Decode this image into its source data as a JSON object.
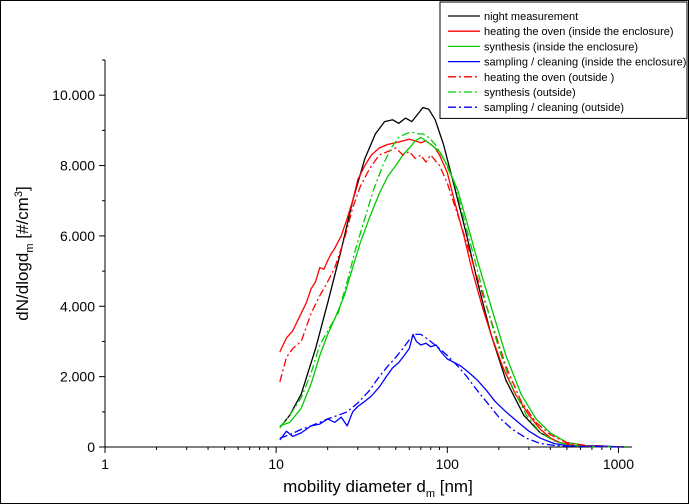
{
  "chart_data": {
    "type": "line",
    "xscale": "log",
    "xlim": [
      1,
      1200
    ],
    "ylim": [
      0,
      11000
    ],
    "grid": false,
    "legend_placement": "top-right",
    "xlabel": {
      "main": "mobility diameter d",
      "sub": "m",
      "unit": " [nm]"
    },
    "ylabel": {
      "main": "dN/dlogd",
      "sub": "m",
      "unit": "  [#/cm",
      "sup": "3",
      "close": "]"
    },
    "x_ticks": [
      {
        "value": 1,
        "label": "1"
      },
      {
        "value": 10,
        "label": "10"
      },
      {
        "value": 100,
        "label": "100"
      },
      {
        "value": 1000,
        "label": "1000"
      }
    ],
    "y_ticks": [
      {
        "value": 0,
        "label": "0"
      },
      {
        "value": 2000,
        "label": "2.000"
      },
      {
        "value": 4000,
        "label": "4.000"
      },
      {
        "value": 6000,
        "label": "6.000"
      },
      {
        "value": 8000,
        "label": "8.000"
      },
      {
        "value": 10000,
        "label": "10.000"
      }
    ],
    "series": [
      {
        "name": "night measurement",
        "color": "#000000",
        "dash": "solid",
        "x": [
          10.5,
          12,
          14,
          17,
          20,
          24,
          28,
          33,
          38,
          43,
          48,
          52,
          57,
          62,
          67,
          72,
          78,
          85,
          95,
          110,
          130,
          150,
          180,
          220,
          280,
          350,
          450,
          550,
          700,
          900,
          1100
        ],
        "y": [
          550,
          900,
          1500,
          2800,
          4100,
          5600,
          7000,
          8200,
          8900,
          9250,
          9300,
          9200,
          9350,
          9250,
          9450,
          9650,
          9600,
          9300,
          8600,
          7400,
          6000,
          4700,
          3200,
          1900,
          900,
          400,
          130,
          40,
          15,
          5,
          0
        ]
      },
      {
        "name": "heating the oven (inside the enclosure)",
        "color": "#ff0000",
        "dash": "solid",
        "x": [
          10.5,
          11.5,
          12.5,
          14,
          15,
          16,
          17,
          18,
          19,
          20,
          21,
          22,
          24,
          26,
          28,
          30,
          33,
          36,
          40,
          45,
          50,
          55,
          60,
          65,
          70,
          75,
          80,
          85,
          90,
          100,
          110,
          125,
          140,
          160,
          180,
          210,
          250,
          300,
          350,
          400,
          450,
          550,
          700,
          900,
          1100
        ],
        "y": [
          2700,
          3100,
          3300,
          3800,
          4100,
          4500,
          4700,
          5100,
          5050,
          5300,
          5500,
          5650,
          6000,
          6500,
          7000,
          7600,
          8000,
          8300,
          8500,
          8600,
          8650,
          8700,
          8750,
          8700,
          8650,
          8700,
          8600,
          8500,
          8300,
          7800,
          7000,
          6000,
          5000,
          4000,
          3200,
          2300,
          1500,
          900,
          500,
          260,
          130,
          45,
          15,
          5,
          0
        ]
      },
      {
        "name": "synthesis (inside the enclosure)",
        "color": "#00cc00",
        "dash": "solid",
        "x": [
          10.5,
          12,
          14,
          16,
          18,
          20,
          22,
          25,
          28,
          31,
          35,
          40,
          45,
          50,
          55,
          60,
          65,
          70,
          75,
          80,
          90,
          100,
          115,
          130,
          150,
          180,
          220,
          270,
          330,
          400,
          500,
          650,
          850,
          1100
        ],
        "y": [
          600,
          700,
          1100,
          1800,
          2600,
          3200,
          3650,
          4300,
          5100,
          5800,
          6500,
          7200,
          7700,
          8000,
          8300,
          8500,
          8700,
          8800,
          8700,
          8600,
          8400,
          8000,
          7300,
          6400,
          5300,
          4000,
          2600,
          1500,
          800,
          400,
          130,
          40,
          10,
          0
        ]
      },
      {
        "name": "sampling / cleaning (inside the enclosure)",
        "color": "#0000ff",
        "dash": "solid",
        "x": [
          10.5,
          11.5,
          12.5,
          14,
          16,
          18,
          20,
          22,
          24,
          26,
          28,
          30,
          33,
          36,
          40,
          44,
          48,
          52,
          56,
          60,
          63,
          66,
          70,
          75,
          80,
          86,
          92,
          100,
          110,
          120,
          135,
          150,
          170,
          190,
          220,
          260,
          300,
          350,
          420,
          500,
          600,
          750,
          950,
          1100
        ],
        "y": [
          200,
          450,
          300,
          400,
          600,
          650,
          800,
          700,
          850,
          600,
          1000,
          1150,
          1300,
          1450,
          1700,
          2000,
          2250,
          2400,
          2600,
          2800,
          3200,
          3000,
          2900,
          2950,
          2850,
          2900,
          2700,
          2500,
          2400,
          2300,
          2100,
          1900,
          1600,
          1300,
          1000,
          700,
          450,
          250,
          100,
          40,
          20,
          40,
          10,
          0
        ]
      },
      {
        "name": "heating the oven (outside )",
        "color": "#ff0000",
        "dash": "dashdot",
        "x": [
          10.5,
          11.5,
          12.5,
          14,
          16,
          18,
          20,
          22,
          25,
          28,
          31,
          35,
          40,
          45,
          50,
          55,
          60,
          65,
          70,
          75,
          80,
          90,
          100,
          115,
          130,
          150,
          180,
          220,
          270,
          330,
          400,
          500,
          650,
          850,
          1100
        ],
        "y": [
          1850,
          2550,
          2800,
          3000,
          3800,
          4300,
          4700,
          5100,
          5900,
          6800,
          7400,
          7900,
          8300,
          8400,
          8500,
          8300,
          8400,
          8200,
          8300,
          8100,
          8300,
          8000,
          7500,
          6600,
          5800,
          4800,
          3600,
          2300,
          1300,
          700,
          350,
          120,
          40,
          10,
          0
        ]
      },
      {
        "name": "synthesis (outside)",
        "color": "#00cc00",
        "dash": "dashdot",
        "x": [
          10.5,
          12,
          14,
          16,
          18,
          20,
          23,
          26,
          29,
          33,
          37,
          42,
          47,
          52,
          57,
          62,
          67,
          72,
          78,
          85,
          95,
          110,
          125,
          145,
          170,
          200,
          240,
          290,
          350,
          430,
          530,
          700,
          900,
          1100
        ],
        "y": [
          550,
          900,
          1400,
          2100,
          2900,
          3300,
          3800,
          4700,
          5600,
          6500,
          7300,
          8000,
          8500,
          8800,
          8900,
          8950,
          8900,
          8900,
          8800,
          8600,
          8200,
          7500,
          6500,
          5300,
          4000,
          2800,
          1700,
          900,
          400,
          150,
          40,
          10,
          5,
          0
        ]
      },
      {
        "name": "sampling / cleaning (outside)",
        "color": "#0000ff",
        "dash": "dashdot",
        "x": [
          10.5,
          12,
          14,
          16,
          18,
          20,
          23,
          26,
          30,
          35,
          40,
          45,
          50,
          55,
          60,
          65,
          70,
          75,
          80,
          90,
          100,
          115,
          130,
          150,
          175,
          200,
          240,
          290,
          350,
          430,
          530,
          700,
          900,
          1100
        ],
        "y": [
          250,
          350,
          500,
          600,
          700,
          800,
          900,
          1000,
          1250,
          1600,
          2000,
          2300,
          2550,
          2800,
          3050,
          3200,
          3200,
          3100,
          3000,
          2800,
          2600,
          2300,
          2000,
          1600,
          1200,
          850,
          500,
          250,
          100,
          40,
          20,
          10,
          5,
          0
        ]
      }
    ]
  }
}
